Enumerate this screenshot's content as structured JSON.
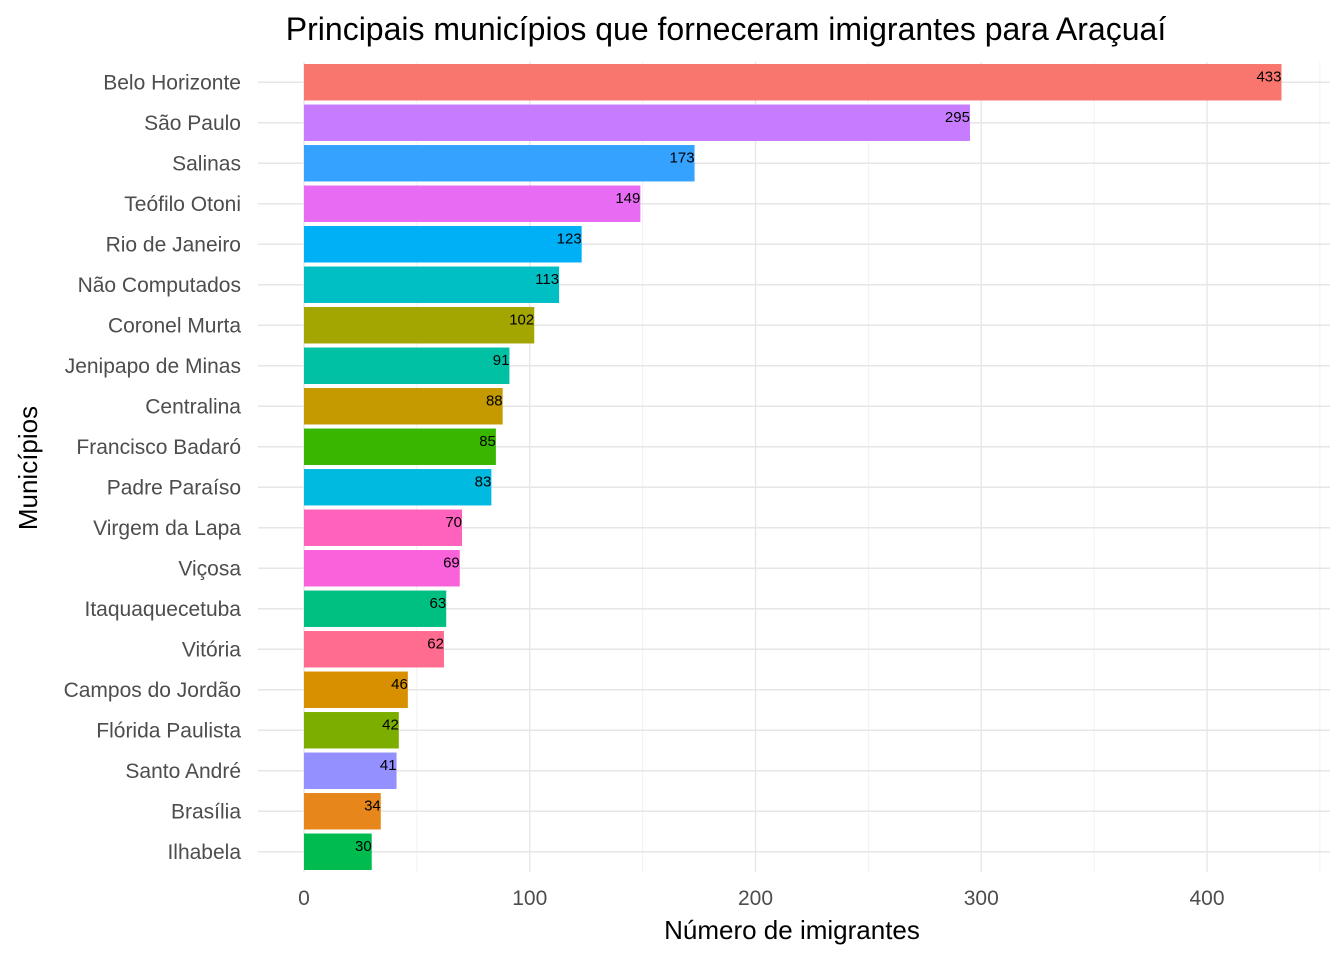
{
  "chart_data": {
    "type": "bar",
    "orientation": "horizontal",
    "title": "Principais municípios que forneceram imigrantes para Araçuaí",
    "xlabel": "Número de imigrantes",
    "ylabel": "Municípios",
    "xlim": [
      0,
      450
    ],
    "xticks": [
      "0",
      "100",
      "200",
      "300",
      "400"
    ],
    "grid": true,
    "legend": "none",
    "categories": [
      "Belo Horizonte",
      "São Paulo",
      "Salinas",
      "Teófilo Otoni",
      "Rio de Janeiro",
      "Não Computados",
      "Coronel Murta",
      "Jenipapo de Minas",
      "Centralina",
      "Francisco Badaró",
      "Padre Paraíso",
      "Virgem da Lapa",
      "Viçosa",
      "Itaquaquecetuba",
      "Vitória",
      "Campos do Jordão",
      "Flórida Paulista",
      "Santo André",
      "Brasília",
      "Ilhabela"
    ],
    "values": [
      433,
      295,
      173,
      149,
      123,
      113,
      102,
      91,
      88,
      85,
      83,
      70,
      69,
      63,
      62,
      46,
      42,
      41,
      34,
      30
    ],
    "colors": [
      "#F8766D",
      "#C77CFF",
      "#35A2FF",
      "#E76BF3",
      "#00B0F6",
      "#00BFC4",
      "#A3A500",
      "#00C1A3",
      "#C49A00",
      "#39B600",
      "#00BAE0",
      "#FF62BC",
      "#FA62DB",
      "#00C081",
      "#FF6C90",
      "#D89000",
      "#7CAE00",
      "#9590FF",
      "#E7861B",
      "#00BB4E"
    ]
  }
}
